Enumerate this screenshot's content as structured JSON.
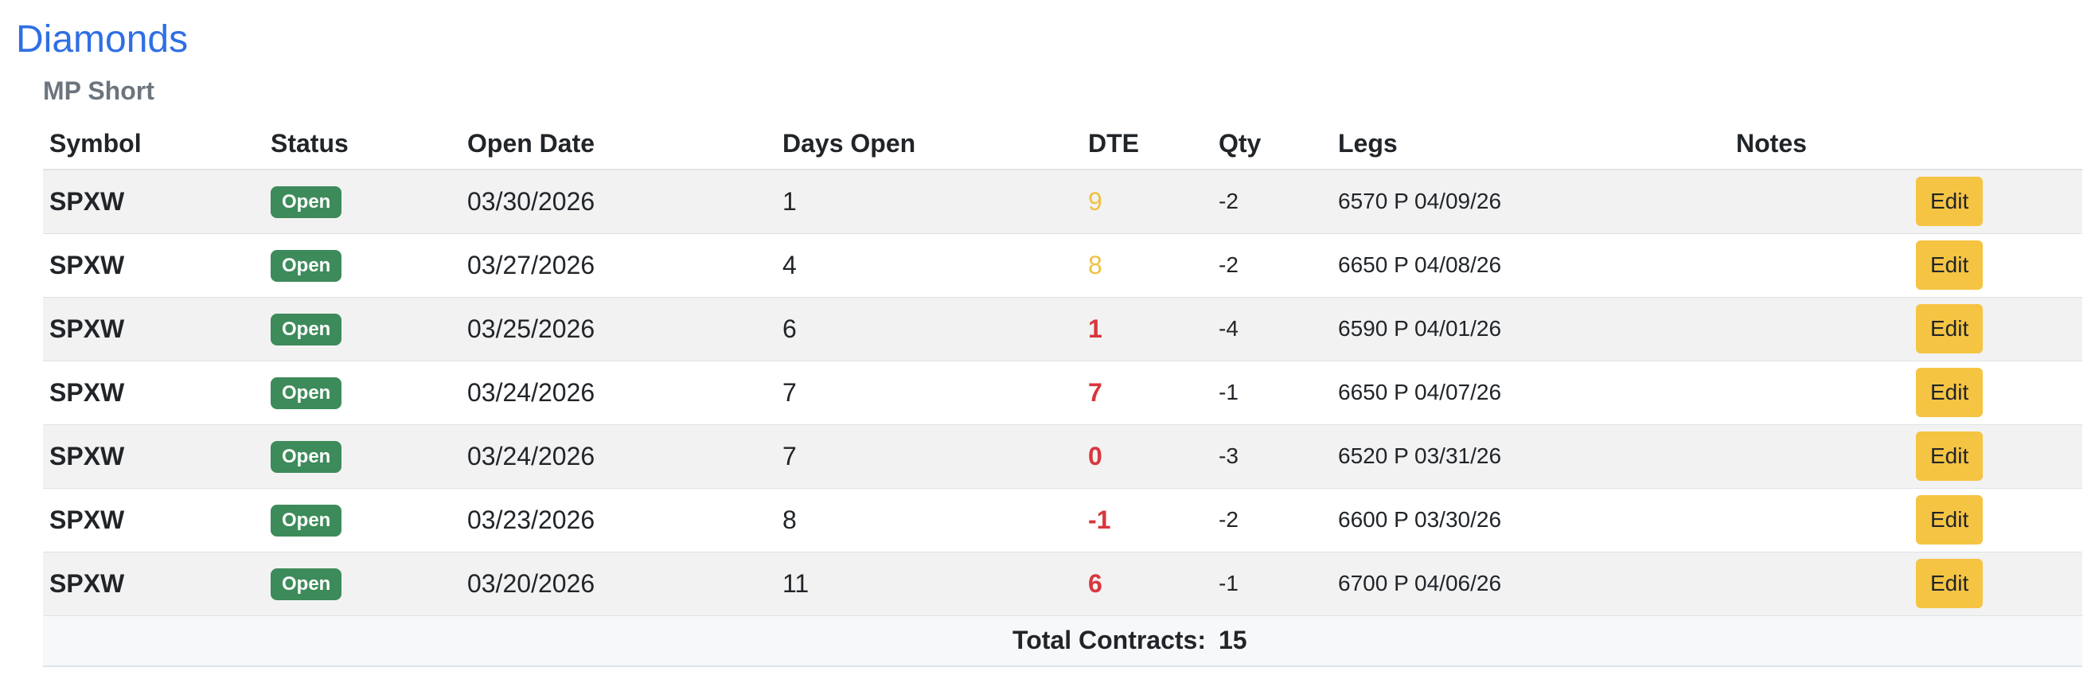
{
  "title": "Diamonds",
  "subtitle": "MP Short",
  "columns": {
    "symbol": "Symbol",
    "status": "Status",
    "open_date": "Open Date",
    "days_open": "Days Open",
    "dte": "DTE",
    "qty": "Qty",
    "legs": "Legs",
    "notes": "Notes"
  },
  "rows": [
    {
      "symbol": "SPXW",
      "status": "Open",
      "open_date": "03/30/2026",
      "days_open": "1",
      "dte": "9",
      "dte_level": "warn",
      "qty": "-2",
      "legs": "6570 P 04/09/26",
      "notes": "",
      "action": "Edit"
    },
    {
      "symbol": "SPXW",
      "status": "Open",
      "open_date": "03/27/2026",
      "days_open": "4",
      "dte": "8",
      "dte_level": "warn",
      "qty": "-2",
      "legs": "6650 P 04/08/26",
      "notes": "",
      "action": "Edit"
    },
    {
      "symbol": "SPXW",
      "status": "Open",
      "open_date": "03/25/2026",
      "days_open": "6",
      "dte": "1",
      "dte_level": "danger",
      "qty": "-4",
      "legs": "6590 P 04/01/26",
      "notes": "",
      "action": "Edit"
    },
    {
      "symbol": "SPXW",
      "status": "Open",
      "open_date": "03/24/2026",
      "days_open": "7",
      "dte": "7",
      "dte_level": "danger",
      "qty": "-1",
      "legs": "6650 P 04/07/26",
      "notes": "",
      "action": "Edit"
    },
    {
      "symbol": "SPXW",
      "status": "Open",
      "open_date": "03/24/2026",
      "days_open": "7",
      "dte": "0",
      "dte_level": "danger",
      "qty": "-3",
      "legs": "6520 P 03/31/26",
      "notes": "",
      "action": "Edit"
    },
    {
      "symbol": "SPXW",
      "status": "Open",
      "open_date": "03/23/2026",
      "days_open": "8",
      "dte": "-1",
      "dte_level": "danger",
      "qty": "-2",
      "legs": "6600 P 03/30/26",
      "notes": "",
      "action": "Edit"
    },
    {
      "symbol": "SPXW",
      "status": "Open",
      "open_date": "03/20/2026",
      "days_open": "11",
      "dte": "6",
      "dte_level": "danger",
      "qty": "-1",
      "legs": "6700 P 04/06/26",
      "notes": "",
      "action": "Edit"
    }
  ],
  "footer": {
    "total_label": "Total Contracts:",
    "total_value": "15"
  },
  "colors": {
    "title": "#2f6fe4",
    "badge_open": "#3d8b5a",
    "dte_warn": "#f0c040",
    "dte_danger": "#d9363e",
    "edit_button": "#f5c443"
  }
}
